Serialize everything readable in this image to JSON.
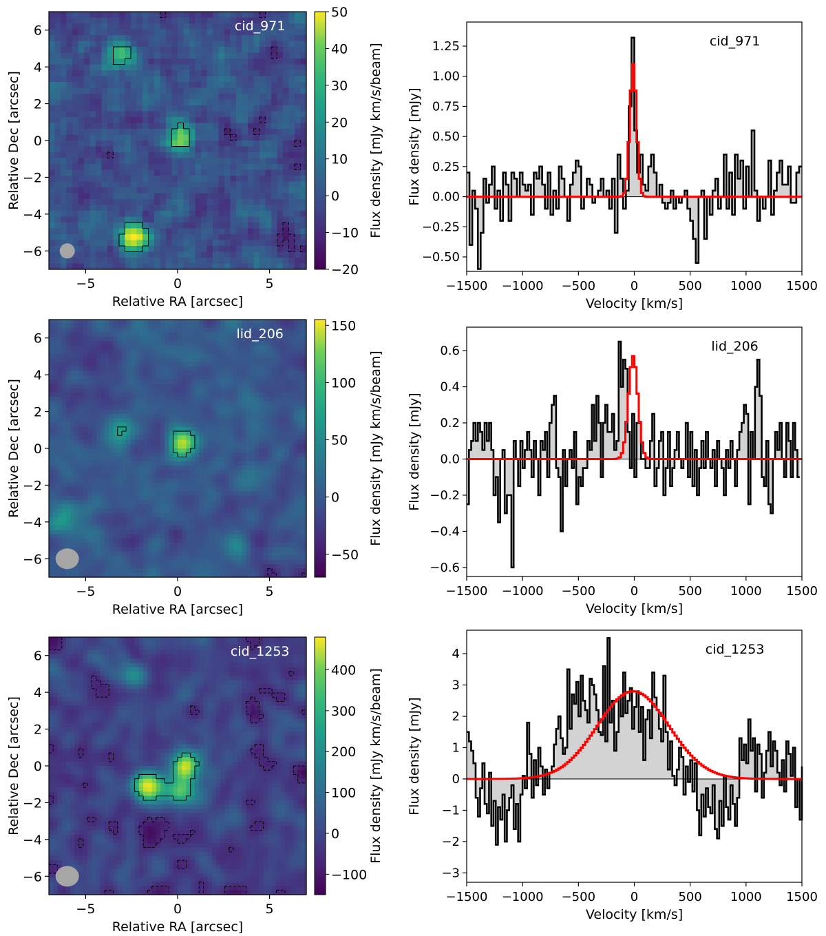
{
  "chart_data": [
    {
      "type": "heatmap",
      "label": "cid_971",
      "xlabel": "Relative RA [arcsec]",
      "ylabel": "Relative Dec [arcsec]",
      "xlim": [
        -7,
        7
      ],
      "ylim": [
        -7,
        7
      ],
      "xticks": [
        "−5",
        "0",
        "5"
      ],
      "xtick_values": [
        -5,
        0,
        5
      ],
      "yticks": [
        "−6",
        "−4",
        "−2",
        "0",
        "2",
        "4",
        "6"
      ],
      "ytick_values": [
        -6,
        -4,
        -2,
        0,
        2,
        4,
        6
      ],
      "colorbar": {
        "label": "Flux density [mJy km/s/beam]",
        "range": [
          -20,
          50
        ],
        "ticks": [
          "−20",
          "−10",
          "0",
          "10",
          "20",
          "30",
          "40",
          "50"
        ],
        "tick_values": [
          -20,
          -10,
          0,
          10,
          20,
          30,
          40,
          50
        ]
      },
      "colormap": "viridis",
      "beam_color": "#a6a6a6",
      "peak_positions": [
        {
          "ra": 0.2,
          "dec": 0.1,
          "flux": 36
        },
        {
          "ra": -2.4,
          "dec": -5.2,
          "flux": 50
        },
        {
          "ra": -3.0,
          "dec": 4.7,
          "flux": 24
        }
      ]
    },
    {
      "type": "line",
      "label": "cid_971",
      "xlabel": "Velocity [km/s]",
      "ylabel": "Flux density [mJy]",
      "xlim": [
        -1500,
        1500
      ],
      "ylim": [
        -0.62,
        1.45
      ],
      "xticks": [
        "−1500",
        "−1000",
        "−500",
        "0",
        "500",
        "1000",
        "1500"
      ],
      "xtick_values": [
        -1500,
        -1000,
        -500,
        0,
        500,
        1000,
        1500
      ],
      "yticks": [
        "−0.50",
        "−0.25",
        "0.00",
        "0.25",
        "0.50",
        "0.75",
        "1.00",
        "1.25"
      ],
      "ytick_values": [
        -0.5,
        -0.25,
        0,
        0.25,
        0.5,
        0.75,
        1.0,
        1.25
      ],
      "spectrum_color": "#000000",
      "fill_color": "#d3d3d3",
      "fit_color": "#ff0000",
      "fit": {
        "amplitude": 1.1,
        "center": -10,
        "sigma": 30
      },
      "series": [
        {
          "name": "",
          "x_start": -1500,
          "bin_width": 25,
          "values": [
            0.2,
            -0.4,
            0.05,
            -0.1,
            -0.6,
            -0.3,
            0.15,
            -0.05,
            0.1,
            0.25,
            -0.1,
            0.05,
            -0.2,
            0.2,
            0.1,
            -0.2,
            0.2,
            0.15,
            0.0,
            0.2,
            0.1,
            0.05,
            0.1,
            -0.15,
            0.2,
            0.15,
            0.25,
            0.1,
            -0.1,
            0.2,
            -0.15,
            0.05,
            -0.1,
            0.25,
            0.15,
            0.0,
            -0.2,
            0.1,
            0.2,
            0.3,
            0.25,
            -0.1,
            0.0,
            0.15,
            0.1,
            -0.05,
            0.0,
            0.05,
            0.15,
            0.0,
            0.05,
            -0.1,
            0.15,
            -0.3,
            0.35,
            0.15,
            -0.1,
            0.05,
            0.75,
            1.32,
            0.55,
            0.2,
            0.35,
            0.1,
            0.05,
            0.25,
            0.35,
            0.2,
            0.0,
            0.1,
            -0.05,
            -0.1,
            -0.05,
            0.05,
            -0.1,
            0.0,
            -0.05,
            0.0,
            0.05,
            -0.1,
            -0.2,
            -0.35,
            -0.55,
            0.0,
            0.05,
            -0.35,
            0.0,
            -0.15,
            0.05,
            0.15,
            -0.1,
            0.0,
            0.35,
            -0.1,
            0.2,
            -0.15,
            0.35,
            0.15,
            0.3,
            -0.1,
            0.25,
            0.0,
            0.55,
            0.05,
            -0.2,
            0.0,
            -0.1,
            0.0,
            0.3,
            -0.15,
            0.05,
            0.2,
            0.3,
            0.1,
            0.1,
            0.25,
            -0.05,
            -0.05,
            0.2,
            0.25
          ]
        }
      ]
    },
    {
      "type": "heatmap",
      "label": "lid_206",
      "xlabel": "Relative RA [arcsec]",
      "ylabel": "Relative Dec [arcsec]",
      "xlim": [
        -7,
        7
      ],
      "ylim": [
        -7,
        7
      ],
      "xticks": [
        "−5",
        "0",
        "5"
      ],
      "xtick_values": [
        -5,
        0,
        5
      ],
      "yticks": [
        "−6",
        "−4",
        "−2",
        "0",
        "2",
        "4",
        "6"
      ],
      "ytick_values": [
        -6,
        -4,
        -2,
        0,
        2,
        4,
        6
      ],
      "colorbar": {
        "label": "Flux density [mJy km/s/beam]",
        "range": [
          -70,
          155
        ],
        "ticks": [
          "−50",
          "0",
          "50",
          "100",
          "150"
        ],
        "tick_values": [
          -50,
          0,
          50,
          100,
          150
        ]
      },
      "colormap": "viridis",
      "beam_color": "#a6a6a6",
      "peak_positions": [
        {
          "ra": 0.3,
          "dec": 0.3,
          "flux": 150
        },
        {
          "ra": -3.0,
          "dec": 1.0,
          "flux": 60
        },
        {
          "ra": 3.4,
          "dec": -5.3,
          "flux": 60
        },
        {
          "ra": -6.3,
          "dec": -4.0,
          "flux": 55
        }
      ]
    },
    {
      "type": "line",
      "label": "lid_206",
      "xlabel": "Velocity [km/s]",
      "ylabel": "Flux density [mJy]",
      "xlim": [
        -1500,
        1500
      ],
      "ylim": [
        -0.65,
        0.73
      ],
      "xticks": [
        "−1500",
        "−1000",
        "−500",
        "0",
        "500",
        "1000",
        "1500"
      ],
      "xtick_values": [
        -1500,
        -1000,
        -500,
        0,
        500,
        1000,
        1500
      ],
      "yticks": [
        "−0.6",
        "−0.4",
        "−0.2",
        "0.0",
        "0.2",
        "0.4",
        "0.6"
      ],
      "ytick_values": [
        -0.6,
        -0.4,
        -0.2,
        0,
        0.2,
        0.4,
        0.6
      ],
      "spectrum_color": "#000000",
      "fill_color": "#d3d3d3",
      "fit_color": "#ff0000",
      "fit": {
        "amplitude": 0.57,
        "center": -10,
        "sigma": 42
      },
      "series": [
        {
          "name": "",
          "x_start": -1500,
          "bin_width": 20,
          "values": [
            -0.25,
            0.05,
            0.1,
            0.2,
            0.1,
            0.2,
            0.15,
            0.05,
            0.2,
            0.1,
            0.2,
            0.05,
            -0.2,
            -0.1,
            -0.35,
            0.0,
            0.05,
            -0.3,
            -0.2,
            -0.2,
            -0.6,
            0.1,
            0.0,
            -0.15,
            0.1,
            -0.05,
            0.05,
            0.15,
            0.05,
            -0.1,
            0.1,
            0.0,
            -0.2,
            0.1,
            0.05,
            0.15,
            -0.1,
            0.2,
            0.3,
            0.35,
            -0.05,
            -0.1,
            -0.4,
            0.05,
            -0.15,
            0.0,
            0.05,
            -0.05,
            0.15,
            -0.25,
            -0.1,
            -0.15,
            -0.05,
            -0.05,
            0.1,
            0.05,
            0.3,
            0.1,
            0.35,
            0.2,
            -0.1,
            0.2,
            0.3,
            0.15,
            0.15,
            0.25,
            0.05,
            0.1,
            0.65,
            0.4,
            0.55,
            0.5,
            0.15,
            -0.05,
            0.25,
            -0.1,
            0.2,
            0.2,
            0.0,
            0.0,
            -0.05,
            -0.05,
            0.1,
            0.25,
            -0.15,
            -0.05,
            0.1,
            0.15,
            -0.2,
            -0.05,
            0.15,
            -0.15,
            -0.05,
            0.05,
            0.15,
            0.0,
            -0.05,
            0.0,
            0.2,
            -0.1,
            0.15,
            -0.15,
            0.05,
            -0.2,
            -0.05,
            0.1,
            -0.05,
            0.15,
            0.0,
            -0.05,
            0.05,
            -0.15,
            0.1,
            0.0,
            -0.05,
            -0.2,
            0.05,
            -0.05,
            0.1,
            0.0,
            -0.15,
            0.05,
            0.15,
            0.2,
            0.3,
            0.25,
            -0.25,
            0.15,
            0.0,
            0.4,
            0.55,
            0.35,
            -0.1,
            -0.15,
            0.1,
            -0.25,
            -0.3,
            0.0,
            0.15,
            0.05,
            0.2,
            0.0,
            -0.1,
            0.2,
            0.1,
            -0.1,
            0.2,
            0.05,
            -0.1
          ]
        }
      ]
    },
    {
      "type": "heatmap",
      "label": "cid_1253",
      "xlabel": "Relative RA [arcsec]",
      "ylabel": "Relative Dec [arcsec]",
      "xlim": [
        -7,
        7
      ],
      "ylim": [
        -7,
        7
      ],
      "xticks": [
        "−5",
        "0",
        "5"
      ],
      "xtick_values": [
        -5,
        0,
        5
      ],
      "yticks": [
        "−6",
        "−4",
        "−2",
        "0",
        "2",
        "4",
        "6"
      ],
      "ytick_values": [
        -6,
        -4,
        -2,
        0,
        2,
        4,
        6
      ],
      "colorbar": {
        "label": "Flux density [mJy km/s/beam]",
        "range": [
          -150,
          480
        ],
        "ticks": [
          "−100",
          "0",
          "100",
          "200",
          "300",
          "400"
        ],
        "tick_values": [
          -100,
          0,
          100,
          200,
          300,
          400
        ]
      },
      "colormap": "viridis",
      "beam_color": "#a6a6a6",
      "peak_positions": [
        {
          "ra": -1.6,
          "dec": -1.1,
          "flux": 470
        },
        {
          "ra": 0.4,
          "dec": 0.0,
          "flux": 430
        },
        {
          "ra": 0.2,
          "dec": -1.4,
          "flux": 300
        },
        {
          "ra": -2.4,
          "dec": 5.0,
          "flux": 200
        }
      ]
    },
    {
      "type": "line",
      "label": "cid_1253",
      "xlabel": "Velocity [km/s]",
      "ylabel": "Flux density [mJy]",
      "xlim": [
        -1500,
        1500
      ],
      "ylim": [
        -3.3,
        4.75
      ],
      "xticks": [
        "−1500",
        "−1000",
        "−500",
        "0",
        "500",
        "1000",
        "1500"
      ],
      "xtick_values": [
        -1500,
        -1000,
        -500,
        0,
        500,
        1000,
        1500
      ],
      "yticks": [
        "−3",
        "−2",
        "−1",
        "0",
        "1",
        "2",
        "3",
        "4"
      ],
      "ytick_values": [
        -3,
        -2,
        -1,
        0,
        1,
        2,
        3,
        4
      ],
      "spectrum_color": "#000000",
      "fill_color": "#d3d3d3",
      "fit_color": "#ff0000",
      "fit": {
        "amplitude": 2.8,
        "center": -10,
        "sigma": 320
      },
      "series": [
        {
          "name": "",
          "x_start": -1500,
          "bin_width": 20,
          "values": [
            1.5,
            1.2,
            0.9,
            0.5,
            -0.6,
            -1.2,
            -0.3,
            0.5,
            -0.8,
            -1.1,
            0.2,
            -1.5,
            -0.7,
            -2.1,
            -0.9,
            -1.3,
            -0.5,
            -2.0,
            -1.0,
            -0.6,
            -0.2,
            -1.6,
            -0.8,
            -2.0,
            -0.5,
            0.1,
            -0.3,
            1.8,
            0.8,
            -0.6,
            0.6,
            -0.2,
            1.0,
            0.4,
            -0.5,
            0.3,
            -0.3,
            0.2,
            0.4,
            1.1,
            1.6,
            2.0,
            1.3,
            0.8,
            1.0,
            3.5,
            1.6,
            2.7,
            2.4,
            3.1,
            2.0,
            3.3,
            2.5,
            2.2,
            1.8,
            3.2,
            3.0,
            2.7,
            2.2,
            1.5,
            1.4,
            3.6,
            1.2,
            4.5,
            1.8,
            2.5,
            0.9,
            1.5,
            2.6,
            2.0,
            3.4,
            2.1,
            2.5,
            2.9,
            1.6,
            2.3,
            2.8,
            1.5,
            2.3,
            0.6,
            1.9,
            2.2,
            1.3,
            3.4,
            2.6,
            2.2,
            1.6,
            1.2,
            3.3,
            1.5,
            0.3,
            1.2,
            0.1,
            -0.2,
            0.3,
            1.0,
            0.7,
            -0.5,
            0.4,
            -0.1,
            0.6,
            -0.4,
            0.5,
            -1.0,
            -1.8,
            -0.5,
            -1.2,
            -0.3,
            -0.9,
            -1.1,
            -0.2,
            -1.6,
            -1.9,
            -0.7,
            -1.5,
            0.1,
            -0.9,
            -1.3,
            -0.2,
            -0.8,
            -1.5,
            -0.6,
            1.3,
            0.6,
            1.1,
            0.5,
            1.9,
            0.9,
            1.3,
            -0.4,
            1.1,
            0.8,
            -0.6,
            0.2,
            0.9,
            1.5,
            0.4,
            1.2,
            0.9,
            0.2,
            -0.2,
            0.6,
            -0.4,
            1.2,
            0.8,
            0.1,
            1.0,
            -0.9,
            0.0,
            -1.3,
            0.4
          ]
        }
      ]
    }
  ]
}
